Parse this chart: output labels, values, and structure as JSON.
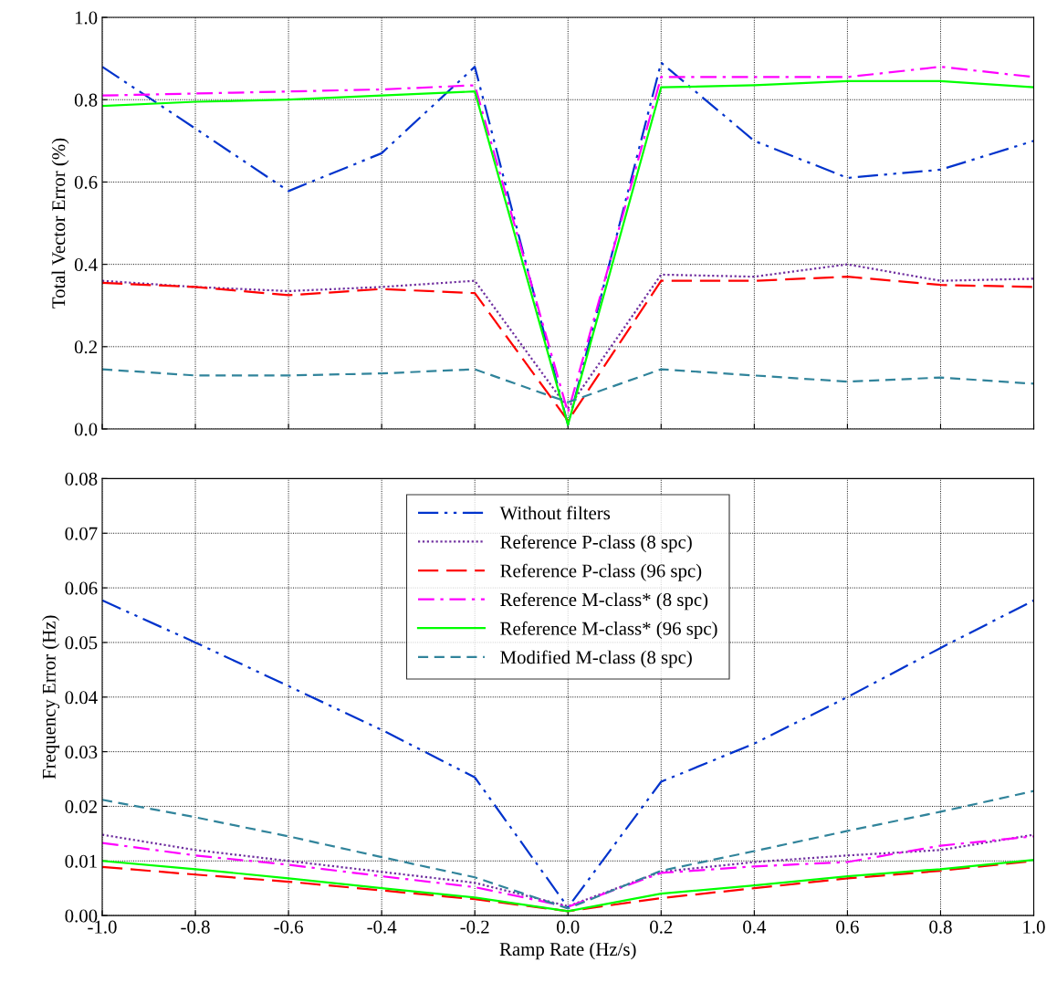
{
  "chart_data": [
    {
      "type": "line",
      "ylabel": "Total Vector Error (%)",
      "x": [
        -1.0,
        -0.8,
        -0.6,
        -0.4,
        -0.2,
        0.0,
        0.2,
        0.4,
        0.6,
        0.8,
        1.0
      ],
      "xlim": [
        -1.0,
        1.0
      ],
      "xticks": [
        -1.0,
        -0.8,
        -0.6,
        -0.4,
        -0.2,
        0.0,
        0.2,
        0.4,
        0.6,
        0.8,
        1.0
      ],
      "ylim": [
        0.0,
        1.0
      ],
      "yticks": [
        {
          "value": 0,
          "label": "0.0"
        },
        0.2,
        0.4,
        0.6,
        0.8,
        {
          "value": 1,
          "label": "1.0"
        }
      ],
      "grid": true,
      "legend": false,
      "tick_labels": "y",
      "marker": "none",
      "series": [
        {
          "color": "#0033cc",
          "line_style": "dashdotdot",
          "values": [
            0.88,
            0.73,
            0.578,
            0.67,
            0.88,
            0.01,
            0.89,
            0.7,
            0.61,
            0.63,
            0.7
          ]
        },
        {
          "color": "#7030a0",
          "line_style": "dotted",
          "values": [
            0.36,
            0.345,
            0.335,
            0.345,
            0.36,
            0.05,
            0.375,
            0.37,
            0.4,
            0.36,
            0.365
          ]
        },
        {
          "color": "#ff0000",
          "line_style": "longdash",
          "values": [
            0.355,
            0.345,
            0.325,
            0.34,
            0.33,
            0.02,
            0.36,
            0.36,
            0.37,
            0.35,
            0.345
          ]
        },
        {
          "color": "#ff00ff",
          "line_style": "dashdot",
          "values": [
            0.81,
            0.815,
            0.82,
            0.825,
            0.835,
            0.04,
            0.855,
            0.855,
            0.855,
            0.88,
            0.855
          ]
        },
        {
          "color": "#00ff00",
          "line_style": "solid",
          "values": [
            0.785,
            0.795,
            0.8,
            0.81,
            0.82,
            0.01,
            0.83,
            0.835,
            0.845,
            0.845,
            0.83
          ]
        },
        {
          "color": "#31849b",
          "line_style": "dashed",
          "values": [
            0.145,
            0.13,
            0.13,
            0.135,
            0.145,
            0.065,
            0.145,
            0.13,
            0.115,
            0.125,
            0.11
          ]
        }
      ]
    },
    {
      "type": "line",
      "xlabel": "Ramp Rate (Hz/s)",
      "ylabel": "Frequency Error (Hz)",
      "x": [
        -1.0,
        -0.8,
        -0.6,
        -0.4,
        -0.2,
        0.0,
        0.2,
        0.4,
        0.6,
        0.8,
        1.0
      ],
      "xlim": [
        -1.0,
        1.0
      ],
      "xticks": [
        {
          "value": -1,
          "label": "-1.0"
        },
        -0.8,
        -0.6,
        -0.4,
        -0.2,
        {
          "value": 0,
          "label": "0.0"
        },
        0.2,
        0.4,
        0.6,
        0.8,
        {
          "value": 1,
          "label": "1.0"
        }
      ],
      "ylim": [
        0.0,
        0.08
      ],
      "yticks": [
        {
          "value": 0.0,
          "label": "0.00"
        },
        {
          "value": 0.01,
          "label": "0.01"
        },
        {
          "value": 0.02,
          "label": "0.02"
        },
        {
          "value": 0.03,
          "label": "0.03"
        },
        {
          "value": 0.04,
          "label": "0.04"
        },
        {
          "value": 0.05,
          "label": "0.05"
        },
        {
          "value": 0.06,
          "label": "0.06"
        },
        {
          "value": 0.07,
          "label": "0.07"
        },
        {
          "value": 0.08,
          "label": "0.08"
        }
      ],
      "grid": true,
      "legend": "top",
      "marker": "none",
      "series": [
        {
          "name": "Without filters",
          "color": "#0033cc",
          "line_style": "dashdotdot",
          "values": [
            0.0577,
            0.05,
            0.042,
            0.034,
            0.0253,
            0.0015,
            0.0245,
            0.0315,
            0.04,
            0.049,
            0.0577
          ]
        },
        {
          "name": "Reference P-class (8 spc)",
          "color": "#7030a0",
          "line_style": "dotted",
          "values": [
            0.0148,
            0.012,
            0.01,
            0.008,
            0.006,
            0.0017,
            0.008,
            0.0098,
            0.011,
            0.012,
            0.0148
          ]
        },
        {
          "name": "Reference P-class (96 spc)",
          "color": "#ff0000",
          "line_style": "longdash",
          "values": [
            0.0089,
            0.0075,
            0.0062,
            0.0046,
            0.003,
            0.0008,
            0.0032,
            0.005,
            0.0068,
            0.0082,
            0.01
          ]
        },
        {
          "name": "Reference M-class* (8 spc)",
          "color": "#ff00ff",
          "line_style": "dashdot",
          "values": [
            0.0133,
            0.011,
            0.0093,
            0.0072,
            0.0052,
            0.0016,
            0.0078,
            0.009,
            0.0098,
            0.0128,
            0.0145
          ]
        },
        {
          "name": "Reference M-class* (96 spc)",
          "color": "#00ff00",
          "line_style": "solid",
          "values": [
            0.01,
            0.0085,
            0.0068,
            0.005,
            0.0033,
            0.0008,
            0.004,
            0.0055,
            0.0072,
            0.0085,
            0.0102
          ]
        },
        {
          "name": "Modified M-class (8 spc)",
          "color": "#31849b",
          "line_style": "dashed",
          "values": [
            0.0212,
            0.018,
            0.0145,
            0.0107,
            0.007,
            0.0013,
            0.0082,
            0.0118,
            0.0155,
            0.019,
            0.0228
          ]
        }
      ]
    }
  ]
}
